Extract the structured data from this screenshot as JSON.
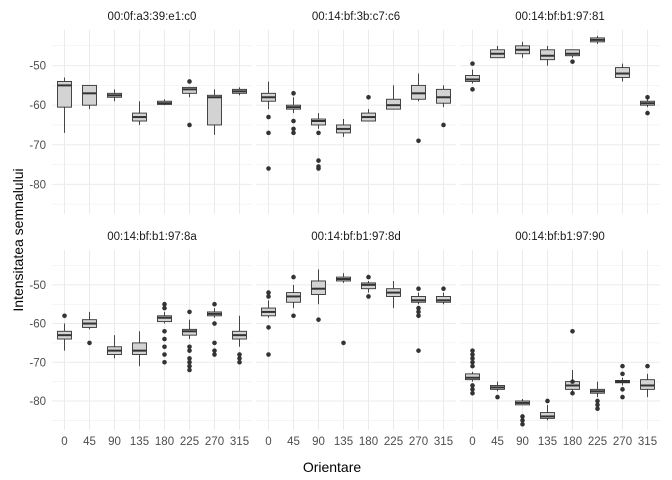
{
  "chart_data": {
    "type": "boxplot",
    "facet_layout": "2 rows x 3 columns, shared axes",
    "xlabel": "Orientare",
    "ylabel": "Intensitatea semnalului",
    "categories": [
      "0",
      "45",
      "90",
      "135",
      "180",
      "225",
      "270",
      "315"
    ],
    "yticks": [
      -50,
      -60,
      -70,
      -80
    ],
    "ylim": [
      -87.5,
      -41
    ],
    "grid": true,
    "box_fill": "#d3d3d3",
    "line_color": "#333333",
    "grid_color": "#ebebeb",
    "panels": [
      {
        "title": "00:0f:a3:39:e1:c0",
        "boxes": [
          {
            "category": "0",
            "whisker_low": -67,
            "q1": -60.5,
            "median": -55,
            "q3": -54,
            "whisker_high": -53,
            "outliers": []
          },
          {
            "category": "45",
            "whisker_low": -61,
            "q1": -60,
            "median": -57,
            "q3": -55,
            "whisker_high": -55,
            "outliers": []
          },
          {
            "category": "90",
            "whisker_low": -59,
            "q1": -58,
            "median": -57.5,
            "q3": -57,
            "whisker_high": -56,
            "outliers": []
          },
          {
            "category": "135",
            "whisker_low": -65,
            "q1": -64,
            "median": -63,
            "q3": -62,
            "whisker_high": -59,
            "outliers": []
          },
          {
            "category": "180",
            "whisker_low": -60,
            "q1": -59.8,
            "median": -59.5,
            "q3": -59,
            "whisker_high": -58.5,
            "outliers": []
          },
          {
            "category": "225",
            "whisker_low": -58,
            "q1": -57,
            "median": -56,
            "q3": -55.5,
            "whisker_high": -55.5,
            "outliers": [
              -54,
              -65
            ]
          },
          {
            "category": "270",
            "whisker_low": -67.5,
            "q1": -65,
            "median": -58,
            "q3": -57.5,
            "whisker_high": -56,
            "outliers": []
          },
          {
            "category": "315",
            "whisker_low": -57.5,
            "q1": -57,
            "median": -56.5,
            "q3": -56,
            "whisker_high": -55.5,
            "outliers": []
          }
        ]
      },
      {
        "title": "00:14:bf:3b:c7:c6",
        "boxes": [
          {
            "category": "0",
            "whisker_low": -61,
            "q1": -59,
            "median": -58,
            "q3": -57,
            "whisker_high": -54,
            "outliers": [
              -63,
              -67,
              -76
            ]
          },
          {
            "category": "45",
            "whisker_low": -62,
            "q1": -61,
            "median": -60.5,
            "q3": -60,
            "whisker_high": -58,
            "outliers": [
              -57,
              -64,
              -66,
              -67
            ]
          },
          {
            "category": "90",
            "whisker_low": -66,
            "q1": -65,
            "median": -64,
            "q3": -63.5,
            "whisker_high": -62,
            "outliers": [
              -67,
              -74,
              -75.5,
              -76
            ]
          },
          {
            "category": "135",
            "whisker_low": -68,
            "q1": -67,
            "median": -66,
            "q3": -65,
            "whisker_high": -63.5,
            "outliers": []
          },
          {
            "category": "180",
            "whisker_low": -64,
            "q1": -64,
            "median": -63,
            "q3": -62,
            "whisker_high": -61,
            "outliers": [
              -58
            ]
          },
          {
            "category": "225",
            "whisker_low": -61,
            "q1": -61,
            "median": -60,
            "q3": -58.5,
            "whisker_high": -55,
            "outliers": []
          },
          {
            "category": "270",
            "whisker_low": -59,
            "q1": -58.5,
            "median": -57,
            "q3": -55,
            "whisker_high": -52,
            "outliers": [
              -69
            ]
          },
          {
            "category": "315",
            "whisker_low": -60.5,
            "q1": -59.5,
            "median": -58,
            "q3": -56,
            "whisker_high": -55,
            "outliers": [
              -65
            ]
          }
        ]
      },
      {
        "title": "00:14:bf:b1:97:81",
        "boxes": [
          {
            "category": "0",
            "whisker_low": -54.5,
            "q1": -54,
            "median": -53.5,
            "q3": -52.5,
            "whisker_high": -51,
            "outliers": [
              -49.5,
              -56
            ]
          },
          {
            "category": "45",
            "whisker_low": -48,
            "q1": -48,
            "median": -47,
            "q3": -46,
            "whisker_high": -45,
            "outliers": []
          },
          {
            "category": "90",
            "whisker_low": -48,
            "q1": -47,
            "median": -46,
            "q3": -45,
            "whisker_high": -44,
            "outliers": []
          },
          {
            "category": "135",
            "whisker_low": -50,
            "q1": -48.5,
            "median": -47.5,
            "q3": -46,
            "whisker_high": -45,
            "outliers": []
          },
          {
            "category": "180",
            "whisker_low": -48,
            "q1": -47.5,
            "median": -47,
            "q3": -46,
            "whisker_high": -46,
            "outliers": [
              -49
            ]
          },
          {
            "category": "225",
            "whisker_low": -44.5,
            "q1": -44,
            "median": -43.5,
            "q3": -43,
            "whisker_high": -42.5,
            "outliers": []
          },
          {
            "category": "270",
            "whisker_low": -54,
            "q1": -53,
            "median": -52,
            "q3": -50.5,
            "whisker_high": -49.5,
            "outliers": []
          },
          {
            "category": "315",
            "whisker_low": -60.5,
            "q1": -60,
            "median": -59.5,
            "q3": -59,
            "whisker_high": -58.5,
            "outliers": [
              -58,
              -62
            ]
          }
        ]
      },
      {
        "title": "00:14:bf:b1:97:8a",
        "boxes": [
          {
            "category": "0",
            "whisker_low": -67,
            "q1": -64,
            "median": -63,
            "q3": -62,
            "whisker_high": -60,
            "outliers": [
              -58
            ]
          },
          {
            "category": "45",
            "whisker_low": -61.5,
            "q1": -61,
            "median": -60,
            "q3": -59,
            "whisker_high": -57,
            "outliers": [
              -65
            ]
          },
          {
            "category": "90",
            "whisker_low": -69,
            "q1": -68,
            "median": -67,
            "q3": -66,
            "whisker_high": -63,
            "outliers": []
          },
          {
            "category": "135",
            "whisker_low": -71,
            "q1": -68,
            "median": -67,
            "q3": -65,
            "whisker_high": -62,
            "outliers": []
          },
          {
            "category": "180",
            "whisker_low": -60,
            "q1": -59.5,
            "median": -58.5,
            "q3": -58,
            "whisker_high": -57,
            "outliers": [
              -55,
              -56,
              -62,
              -64,
              -66,
              -68,
              -70
            ]
          },
          {
            "category": "225",
            "whisker_low": -64,
            "q1": -63,
            "median": -62,
            "q3": -61.5,
            "whisker_high": -59,
            "outliers": [
              -57,
              -66,
              -67,
              -69,
              -70,
              -71,
              -72
            ]
          },
          {
            "category": "270",
            "whisker_low": -58.5,
            "q1": -58,
            "median": -57.5,
            "q3": -57,
            "whisker_high": -56,
            "outliers": [
              -55,
              -60,
              -65,
              -67,
              -68
            ]
          },
          {
            "category": "315",
            "whisker_low": -66,
            "q1": -64,
            "median": -63,
            "q3": -62,
            "whisker_high": -58,
            "outliers": [
              -68,
              -69,
              -70
            ]
          }
        ]
      },
      {
        "title": "00:14:bf:b1:97:8d",
        "boxes": [
          {
            "category": "0",
            "whisker_low": -58.5,
            "q1": -58,
            "median": -57,
            "q3": -56,
            "whisker_high": -54,
            "outliers": [
              -52,
              -53,
              -61,
              -68
            ]
          },
          {
            "category": "45",
            "whisker_low": -56,
            "q1": -54.5,
            "median": -53,
            "q3": -52,
            "whisker_high": -50,
            "outliers": [
              -48,
              -58
            ]
          },
          {
            "category": "90",
            "whisker_low": -55,
            "q1": -52.5,
            "median": -51,
            "q3": -49,
            "whisker_high": -46,
            "outliers": [
              -59
            ]
          },
          {
            "category": "135",
            "whisker_low": -49.5,
            "q1": -49,
            "median": -48.5,
            "q3": -48,
            "whisker_high": -47,
            "outliers": [
              -65
            ]
          },
          {
            "category": "180",
            "whisker_low": -52,
            "q1": -51,
            "median": -50,
            "q3": -49.5,
            "whisker_high": -49,
            "outliers": [
              -48,
              -53
            ]
          },
          {
            "category": "225",
            "whisker_low": -56,
            "q1": -53,
            "median": -52,
            "q3": -51,
            "whisker_high": -49,
            "outliers": []
          },
          {
            "category": "270",
            "whisker_low": -55,
            "q1": -54.5,
            "median": -54,
            "q3": -53,
            "whisker_high": -52,
            "outliers": [
              -51,
              -56,
              -57,
              -58,
              -67
            ]
          },
          {
            "category": "315",
            "whisker_low": -55,
            "q1": -54.5,
            "median": -54,
            "q3": -53,
            "whisker_high": -52,
            "outliers": [
              -51
            ]
          }
        ]
      },
      {
        "title": "00:14:bf:b1:97:90",
        "boxes": [
          {
            "category": "0",
            "whisker_low": -75,
            "q1": -74.5,
            "median": -74,
            "q3": -73,
            "whisker_high": -72.5,
            "outliers": [
              -67,
              -68,
              -69,
              -70,
              -71,
              -76,
              -77,
              -78
            ]
          },
          {
            "category": "45",
            "whisker_low": -77.5,
            "q1": -77,
            "median": -76.5,
            "q3": -76,
            "whisker_high": -75,
            "outliers": [
              -79
            ]
          },
          {
            "category": "90",
            "whisker_low": -81,
            "q1": -81,
            "median": -80.5,
            "q3": -80,
            "whisker_high": -79.5,
            "outliers": [
              -84,
              -85,
              -86
            ]
          },
          {
            "category": "135",
            "whisker_low": -85,
            "q1": -84.5,
            "median": -84,
            "q3": -83,
            "whisker_high": -81,
            "outliers": [
              -80
            ]
          },
          {
            "category": "180",
            "whisker_low": -77.5,
            "q1": -77,
            "median": -76,
            "q3": -75,
            "whisker_high": -72,
            "outliers": [
              -62,
              -75,
              -78
            ]
          },
          {
            "category": "225",
            "whisker_low": -79,
            "q1": -78,
            "median": -77.5,
            "q3": -77,
            "whisker_high": -75,
            "outliers": [
              -80,
              -81,
              -82
            ]
          },
          {
            "category": "270",
            "whisker_low": -76,
            "q1": -75.3,
            "median": -75,
            "q3": -74.7,
            "whisker_high": -74,
            "outliers": [
              -71,
              -73,
              -77,
              -79
            ]
          },
          {
            "category": "315",
            "whisker_low": -79,
            "q1": -77,
            "median": -76,
            "q3": -74.5,
            "whisker_high": -73,
            "outliers": [
              -71
            ]
          }
        ]
      }
    ]
  }
}
